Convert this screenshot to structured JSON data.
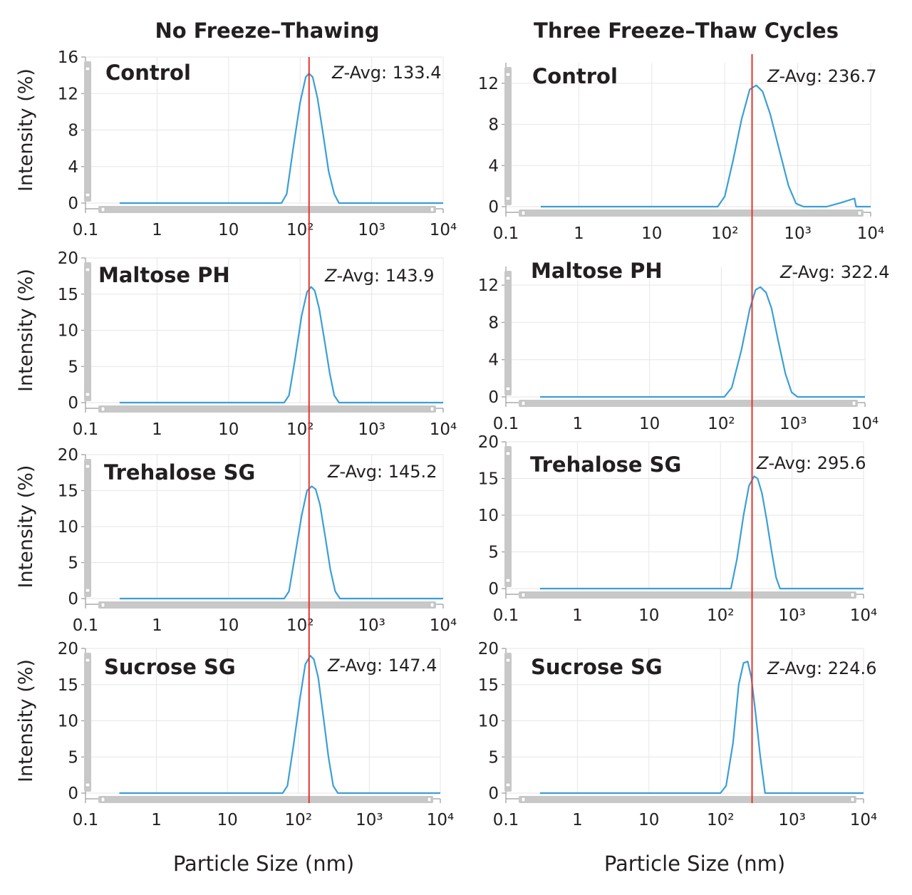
{
  "figure": {
    "column_titles": [
      "No Freeze–Thawing",
      "Three Freeze–Thaw Cycles"
    ],
    "x_axis_title": "Particle Size (nm)",
    "reference_line_color": "#e8332a",
    "curve_color": "#3a9fd6"
  },
  "chart_data": [
    {
      "type": "line",
      "panel": "No Freeze-Thawing / Control",
      "sample": "Control",
      "zavg_prefix": "Z",
      "zavg_text": "-Avg: 133.4",
      "xscale": "log",
      "xlim": [
        0.1,
        10000
      ],
      "x_ticks": [
        "0.1",
        "1",
        "10",
        "10²",
        "10³",
        "10⁴"
      ],
      "ylim": [
        0,
        16
      ],
      "y_ticks": [
        "0",
        "4",
        "8",
        "12",
        "16"
      ],
      "ylabel": "Intensity (%)",
      "reference_x": 133.4,
      "x": [
        0.3,
        55,
        65,
        80,
        100,
        120,
        133,
        150,
        175,
        210,
        250,
        300,
        350,
        1000,
        10000
      ],
      "y": [
        0,
        0,
        1,
        6,
        11,
        13.8,
        14.2,
        13.8,
        11.5,
        7.5,
        3.5,
        1,
        0,
        0,
        0
      ]
    },
    {
      "type": "line",
      "panel": "Three Freeze-Thaw Cycles / Control",
      "sample": "Control",
      "zavg_prefix": "Z",
      "zavg_text": "-Avg: 236.7",
      "xscale": "log",
      "xlim": [
        0.1,
        10000
      ],
      "x_ticks": [
        "0.1",
        "1",
        "10",
        "10²",
        "10³",
        "10⁴"
      ],
      "ylim": [
        0,
        14
      ],
      "y_ticks": [
        "0",
        "4",
        "8",
        "12"
      ],
      "ylabel": "",
      "reference_x": 236.7,
      "x": [
        0.3,
        80,
        100,
        130,
        170,
        220,
        270,
        330,
        420,
        560,
        750,
        950,
        1200,
        2500,
        4000,
        6000,
        6300,
        7000,
        10000
      ],
      "y": [
        0,
        0,
        1,
        4.5,
        8.5,
        11.4,
        11.8,
        11.2,
        9,
        5.5,
        2,
        0.3,
        0,
        0,
        0.4,
        0.8,
        0,
        0,
        0
      ]
    },
    {
      "type": "line",
      "panel": "No Freeze-Thawing / Maltose PH",
      "sample": "Maltose PH",
      "zavg_prefix": "Z",
      "zavg_text": "-Avg: 143.9",
      "xscale": "log",
      "xlim": [
        0.1,
        10000
      ],
      "x_ticks": [
        "0.1",
        "1",
        "10",
        "10²",
        "10³",
        "10⁴"
      ],
      "ylim": [
        0,
        20
      ],
      "y_ticks": [
        "0",
        "5",
        "10",
        "15",
        "20"
      ],
      "ylabel": "Intensity (%)",
      "reference_x": 143.9,
      "x": [
        0.3,
        60,
        70,
        85,
        105,
        125,
        143,
        160,
        185,
        220,
        260,
        300,
        350,
        1000,
        10000
      ],
      "y": [
        0,
        0,
        1,
        6,
        12,
        15.3,
        16,
        15.5,
        13,
        8.5,
        4,
        1,
        0,
        0,
        0
      ]
    },
    {
      "type": "line",
      "panel": "Three Freeze-Thaw Cycles / Maltose PH",
      "sample": "Maltose PH",
      "zavg_prefix": "Z",
      "zavg_text": "-Avg: 322.4",
      "xscale": "log",
      "xlim": [
        0.1,
        10000
      ],
      "x_ticks": [
        "0.1",
        "1",
        "10",
        "10²",
        "10³",
        "10⁴"
      ],
      "ylim": [
        0,
        14
      ],
      "y_ticks": [
        "0",
        "4",
        "8",
        "12"
      ],
      "ylabel": "",
      "reference_x": 322.4,
      "x": [
        0.3,
        110,
        140,
        190,
        250,
        300,
        350,
        420,
        500,
        620,
        780,
        950,
        1150,
        10000
      ],
      "y": [
        0,
        0,
        1,
        5,
        9.5,
        11.5,
        11.8,
        11.2,
        9.5,
        6,
        2.5,
        0.5,
        0,
        0
      ]
    },
    {
      "type": "line",
      "panel": "No Freeze-Thawing / Trehalose SG",
      "sample": "Trehalose SG",
      "zavg_prefix": "Z",
      "zavg_text": "-Avg: 145.2",
      "xscale": "log",
      "xlim": [
        0.1,
        10000
      ],
      "x_ticks": [
        "0.1",
        "1",
        "10",
        "10²",
        "10³",
        "10⁴"
      ],
      "ylim": [
        0,
        20
      ],
      "y_ticks": [
        "0",
        "5",
        "10",
        "15",
        "20"
      ],
      "ylabel": "Intensity (%)",
      "reference_x": 145.2,
      "x": [
        0.3,
        60,
        70,
        85,
        105,
        125,
        145,
        165,
        190,
        225,
        265,
        310,
        360,
        1000,
        10000
      ],
      "y": [
        0,
        0,
        1,
        6,
        11.5,
        15,
        15.6,
        15.2,
        13,
        8.5,
        4,
        1,
        0,
        0,
        0
      ]
    },
    {
      "type": "line",
      "panel": "Three Freeze-Thaw Cycles / Trehalose SG",
      "sample": "Trehalose SG",
      "zavg_prefix": "Z",
      "zavg_text": "-Avg: 295.6",
      "xscale": "log",
      "xlim": [
        0.1,
        10000
      ],
      "x_ticks": [
        "0.1",
        "1",
        "10",
        "10²",
        "10³",
        "10⁴"
      ],
      "ylim": [
        0,
        20
      ],
      "y_ticks": [
        "0",
        "5",
        "10",
        "15",
        "20"
      ],
      "ylabel": "",
      "reference_x": 295.6,
      "x": [
        0.3,
        140,
        170,
        210,
        250,
        295,
        330,
        380,
        440,
        520,
        600,
        680,
        10000
      ],
      "y": [
        0,
        0,
        4,
        10,
        14,
        15.3,
        15,
        13,
        9.5,
        5,
        1.5,
        0,
        0
      ]
    },
    {
      "type": "line",
      "panel": "No Freeze-Thawing / Sucrose SG",
      "sample": "Sucrose SG",
      "zavg_prefix": "Z",
      "zavg_text": "-Avg: 147.4",
      "xscale": "log",
      "xlim": [
        0.1,
        10000
      ],
      "x_ticks": [
        "0.1",
        "1",
        "10",
        "10²",
        "10³",
        "10⁴"
      ],
      "ylim": [
        0,
        20
      ],
      "y_ticks": [
        "0",
        "5",
        "10",
        "15",
        "20"
      ],
      "ylabel": "Intensity (%)",
      "reference_x": 147.4,
      "x": [
        0.3,
        60,
        70,
        85,
        105,
        125,
        147,
        165,
        190,
        225,
        265,
        310,
        360,
        1000,
        10000
      ],
      "y": [
        0,
        0,
        1,
        6.5,
        13,
        17.8,
        19,
        18.5,
        16,
        10.5,
        5,
        1,
        0,
        0,
        0
      ]
    },
    {
      "type": "line",
      "panel": "Three Freeze-Thaw Cycles / Sucrose SG",
      "sample": "Sucrose SG",
      "zavg_prefix": "Z",
      "zavg_text": "-Avg: 224.6",
      "xscale": "log",
      "xlim": [
        0.1,
        10000
      ],
      "x_ticks": [
        "0.1",
        "1",
        "10",
        "10²",
        "10³",
        "10⁴"
      ],
      "ylim": [
        0,
        20
      ],
      "y_ticks": [
        "0",
        "5",
        "10",
        "15",
        "20"
      ],
      "ylabel": "",
      "reference_x": 224.6,
      "x": [
        0.3,
        100,
        120,
        150,
        180,
        210,
        240,
        270,
        310,
        360,
        420,
        10000
      ],
      "y": [
        0,
        0,
        1,
        7,
        15,
        18,
        18.2,
        16,
        11,
        5,
        0,
        0
      ]
    }
  ]
}
